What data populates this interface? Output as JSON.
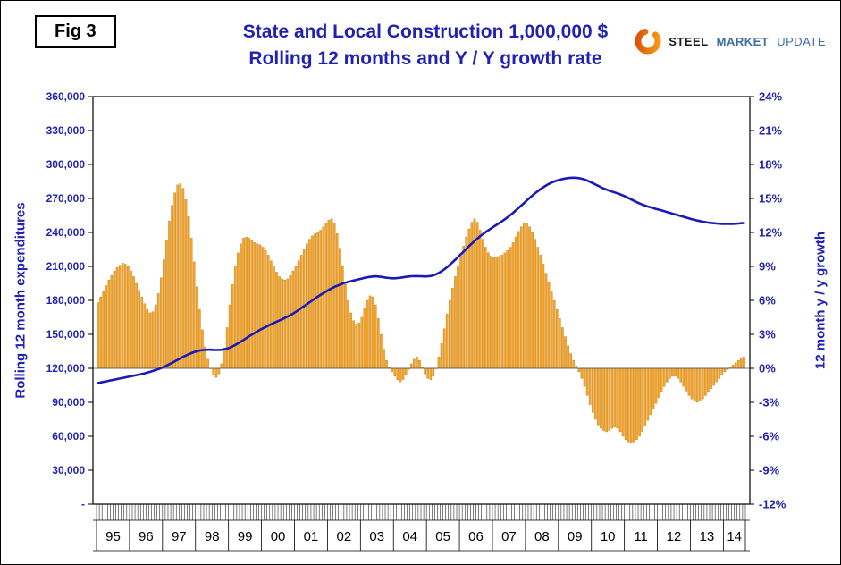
{
  "chart_data": {
    "type": "combo_bar_line",
    "fig_label": "Fig 3",
    "title": "State and Local Construction 1,000,000 $",
    "subtitle": "Rolling 12 months and Y / Y growth rate",
    "accent_color": "#2222b2",
    "grid": "none",
    "legend": "none",
    "logo_text": [
      "STEEL",
      "MARKET",
      "UPDATE"
    ],
    "x_axis": {
      "start": "1995-01",
      "end": "2014-08",
      "frequency": "monthly",
      "year_labels": [
        "95",
        "96",
        "97",
        "98",
        "99",
        "00",
        "01",
        "02",
        "03",
        "04",
        "05",
        "06",
        "07",
        "08",
        "09",
        "10",
        "11",
        "12",
        "13",
        "14"
      ]
    },
    "left_axis": {
      "title": "Rolling 12 month expenditures",
      "min": 0,
      "max": 360000,
      "step": 30000,
      "tick_labels": [
        "360,000",
        "330,000",
        "300,000",
        "270,000",
        "240,000",
        "210,000",
        "180,000",
        "150,000",
        "120,000",
        "90,000",
        "60,000",
        "30,000",
        "-"
      ]
    },
    "right_axis": {
      "title": "12 month y / y growth",
      "min": -12,
      "max": 24,
      "step": 3,
      "tick_labels": [
        "24%",
        "21%",
        "18%",
        "15%",
        "12%",
        "9%",
        "6%",
        "3%",
        "0%",
        "-3%",
        "-6%",
        "-9%",
        "-12%"
      ]
    },
    "series": [
      {
        "name": "12 month y / y growth",
        "type": "bar",
        "axis": "right",
        "unit": "%",
        "color": "#f6a52d",
        "border_color": "#c07d12",
        "values": [
          5.8,
          6.3,
          6.8,
          7.3,
          7.8,
          8.2,
          8.6,
          8.9,
          9.1,
          9.3,
          9.2,
          9.0,
          8.6,
          8.1,
          7.5,
          6.9,
          6.3,
          5.7,
          5.2,
          4.9,
          5.0,
          5.6,
          6.6,
          8.0,
          9.6,
          11.3,
          13.0,
          14.4,
          15.5,
          16.2,
          16.3,
          15.9,
          14.9,
          13.4,
          11.5,
          9.4,
          7.2,
          5.2,
          3.4,
          1.9,
          0.8,
          0.0,
          -0.6,
          -0.8,
          -0.5,
          0.4,
          1.8,
          3.6,
          5.6,
          7.4,
          9.0,
          10.2,
          11.0,
          11.5,
          11.6,
          11.5,
          11.3,
          11.1,
          11.0,
          10.9,
          10.7,
          10.4,
          10.0,
          9.5,
          9.0,
          8.5,
          8.1,
          7.9,
          7.8,
          7.9,
          8.2,
          8.6,
          9.0,
          9.5,
          10.0,
          10.5,
          11.0,
          11.4,
          11.7,
          11.9,
          12.0,
          12.2,
          12.5,
          12.8,
          13.1,
          13.2,
          12.8,
          11.9,
          10.6,
          9.0,
          7.4,
          6.0,
          4.9,
          4.2,
          3.9,
          4.0,
          4.5,
          5.3,
          6.0,
          6.4,
          6.3,
          5.6,
          4.4,
          3.0,
          1.7,
          0.7,
          0.1,
          -0.3,
          -0.7,
          -1.0,
          -1.2,
          -1.0,
          -0.6,
          -0.1,
          0.4,
          0.8,
          1.0,
          0.7,
          0.1,
          -0.5,
          -0.9,
          -1.0,
          -0.7,
          0.0,
          1.0,
          2.2,
          3.5,
          4.8,
          6.0,
          7.1,
          8.1,
          9.0,
          9.9,
          10.8,
          11.6,
          12.3,
          12.9,
          13.2,
          12.9,
          12.2,
          11.4,
          10.7,
          10.2,
          9.9,
          9.8,
          9.8,
          9.9,
          10.0,
          10.2,
          10.4,
          10.7,
          11.1,
          11.6,
          12.1,
          12.5,
          12.8,
          12.8,
          12.5,
          12.0,
          11.4,
          10.7,
          10.0,
          9.2,
          8.4,
          7.6,
          6.8,
          6.0,
          5.2,
          4.4,
          3.6,
          2.8,
          2.0,
          1.3,
          0.7,
          0.2,
          -0.3,
          -0.9,
          -1.6,
          -2.4,
          -3.2,
          -3.9,
          -4.5,
          -5.0,
          -5.3,
          -5.5,
          -5.6,
          -5.5,
          -5.3,
          -5.2,
          -5.3,
          -5.6,
          -6.0,
          -6.3,
          -6.5,
          -6.6,
          -6.5,
          -6.3,
          -6.0,
          -5.6,
          -5.1,
          -4.6,
          -4.1,
          -3.6,
          -3.1,
          -2.6,
          -2.1,
          -1.6,
          -1.2,
          -0.9,
          -0.7,
          -0.7,
          -0.9,
          -1.2,
          -1.6,
          -2.0,
          -2.4,
          -2.7,
          -2.9,
          -3.0,
          -2.9,
          -2.7,
          -2.4,
          -2.1,
          -1.8,
          -1.5,
          -1.2,
          -0.9,
          -0.6,
          -0.3,
          -0.1,
          0.1,
          0.3,
          0.5,
          0.7,
          0.9,
          1.0
        ]
      },
      {
        "name": "Rolling 12 month expenditures",
        "type": "line",
        "axis": "left",
        "unit": "1,000,000 $",
        "color": "#1a1ab8",
        "values": [
          107000,
          107500,
          108000,
          108500,
          109000,
          109500,
          110000,
          110500,
          111000,
          111500,
          112000,
          112500,
          113000,
          113500,
          114000,
          114500,
          115000,
          115600,
          116200,
          116900,
          117700,
          118500,
          119300,
          120200,
          121200,
          122400,
          123600,
          124900,
          126200,
          127500,
          128800,
          130100,
          131300,
          132400,
          133400,
          134300,
          135100,
          135700,
          136100,
          136300,
          136400,
          136400,
          136300,
          136200,
          136200,
          136400,
          136800,
          137400,
          138300,
          139400,
          140700,
          142100,
          143600,
          145100,
          146700,
          148300,
          149800,
          151300,
          152700,
          154000,
          155300,
          156500,
          157700,
          158900,
          160000,
          161100,
          162200,
          163300,
          164500,
          165700,
          167000,
          168400,
          169900,
          171500,
          173200,
          174900,
          176600,
          178300,
          180000,
          181700,
          183300,
          184900,
          186400,
          187900,
          189300,
          190600,
          191800,
          192900,
          193900,
          194800,
          195600,
          196300,
          196900,
          197500,
          198100,
          198700,
          199300,
          199900,
          200400,
          200800,
          201100,
          201200,
          201100,
          200800,
          200400,
          200000,
          199700,
          199500,
          199500,
          199700,
          200000,
          200400,
          200800,
          201100,
          201300,
          201400,
          201400,
          201300,
          201200,
          201100,
          201200,
          201500,
          202100,
          203000,
          204200,
          205700,
          207400,
          209300,
          211400,
          213600,
          215900,
          218300,
          220700,
          223100,
          225500,
          227900,
          230200,
          232400,
          234500,
          236500,
          238400,
          240200,
          241900,
          243500,
          245100,
          246700,
          248300,
          249900,
          251600,
          253400,
          255300,
          257300,
          259400,
          261600,
          263800,
          266000,
          268200,
          270400,
          272500,
          274500,
          276400,
          278200,
          279900,
          281400,
          282800,
          284000,
          285000,
          285800,
          286500,
          287100,
          287600,
          288000,
          288200,
          288300,
          288200,
          287900,
          287400,
          286700,
          285800,
          284700,
          283500,
          282300,
          281100,
          279900,
          278800,
          277800,
          276900,
          276100,
          275300,
          274500,
          273600,
          272600,
          271500,
          270300,
          269100,
          267900,
          266700,
          265600,
          264600,
          263700,
          262900,
          262200,
          261500,
          260800,
          260100,
          259400,
          258700,
          258000,
          257300,
          256600,
          255900,
          255200,
          254500,
          253800,
          253100,
          252400,
          251700,
          251100,
          250500,
          250000,
          249500,
          249100,
          248700,
          248400,
          248100,
          247900,
          247700,
          247600,
          247500,
          247500,
          247500,
          247600,
          247700,
          247900,
          248100,
          248300
        ]
      }
    ]
  }
}
